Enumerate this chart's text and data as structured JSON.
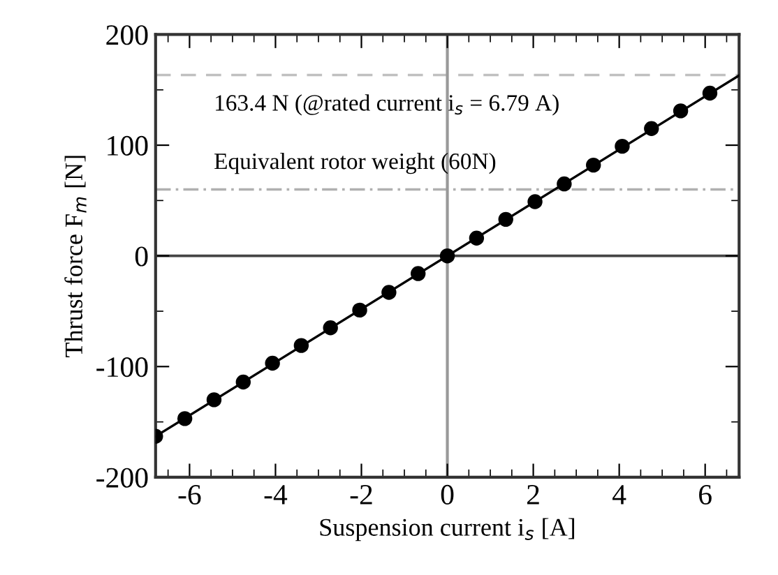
{
  "chart_data": {
    "type": "scatter",
    "xlabel": "Suspension current i$_{s}$ [A]",
    "ylabel": "Thrust force F$_{m}$ [N]",
    "xlim": [
      -6.79,
      6.79
    ],
    "xticks": [
      -6,
      -4,
      -2,
      0,
      2,
      4,
      6
    ],
    "ylim": [
      -200,
      200
    ],
    "yticks": [
      -200,
      -100,
      0,
      100,
      200
    ],
    "grid": false,
    "legend": false,
    "series": [
      {
        "color": "#000000",
        "marker": "circle",
        "x": [
          -6.79,
          -6.11,
          -5.43,
          -4.75,
          -4.07,
          -3.4,
          -2.72,
          -2.04,
          -1.36,
          -0.68,
          0,
          0.68,
          1.36,
          2.04,
          2.72,
          3.4,
          4.07,
          4.75,
          5.43,
          6.11
        ],
        "values": [
          -163,
          -147,
          -130,
          -114,
          -97,
          -81,
          -65,
          -49,
          -33,
          -16,
          0,
          16,
          33,
          49,
          65,
          82,
          99,
          115,
          131,
          147
        ]
      },
      {
        "type": "line",
        "color": "#000000",
        "marker": "none",
        "line_style": "solid",
        "x": [
          -6.79,
          6.79
        ],
        "values": [
          -163,
          163
        ]
      }
    ],
    "ref_lines": [
      {
        "axis": "y",
        "value": 163.4,
        "label": "163.4 N (@rated current i$_{s}$ = 6.79 A)",
        "color": "#c0c0c0",
        "line_style": "dashed"
      },
      {
        "axis": "y",
        "value": 60,
        "label": "Equivalent rotor weight (60N)",
        "color": "#b0b0b0",
        "line_style": "dashdot"
      },
      {
        "axis": "x",
        "value": 0,
        "color": "#999999",
        "line_style": "solid"
      },
      {
        "axis": "y",
        "value": 0,
        "color": "#444444",
        "line_style": "solid"
      }
    ]
  }
}
